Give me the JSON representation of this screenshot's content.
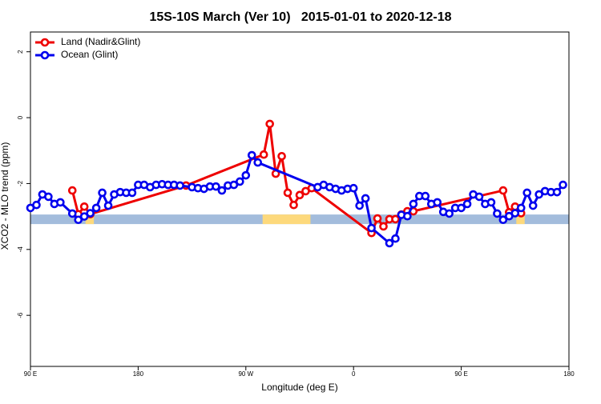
{
  "chart_data": {
    "type": "line",
    "title": "15S-10S March (Ver 10)   2015-01-01 to 2020-12-18",
    "x_label": "Longitude (deg E)",
    "y_label": "XCO2 - MLO trend (ppm)",
    "xlim": [
      90,
      540
    ],
    "xticks": [
      {
        "value": 90,
        "label": "90 E"
      },
      180,
      {
        "value": 270,
        "label": "90 W"
      },
      {
        "value": 360,
        "label": "0"
      },
      {
        "value": 450,
        "label": "90 E"
      },
      {
        "value": 540,
        "label": "180"
      }
    ],
    "ylim": [
      -7.55,
      2.6
    ],
    "yticks": [
      2,
      0,
      -2,
      -4,
      -6
    ],
    "legend": "top-left",
    "band": {
      "ylim": [
        -3.23,
        -2.94
      ],
      "color": "#a3bcdc",
      "highlight_color": "#fdd97c",
      "highlight_x": [
        [
          136,
          143
        ],
        [
          284,
          324
        ],
        [
          496,
          503
        ]
      ]
    },
    "series": [
      {
        "name": "Land (Nadir&Glint)",
        "color": "#ee0000",
        "x": [
          125,
          130,
          135,
          140,
          220,
          285,
          290,
          295,
          300,
          305,
          310,
          315,
          320,
          325,
          375,
          380,
          385,
          390,
          395,
          400,
          405,
          410,
          485,
          490,
          495,
          500
        ],
        "values": [
          -2.21,
          -2.93,
          -2.7,
          -2.93,
          -2.06,
          -1.12,
          -0.19,
          -1.7,
          -1.17,
          -2.28,
          -2.65,
          -2.35,
          -2.23,
          -2.14,
          -3.5,
          -3.06,
          -3.3,
          -3.08,
          -3.08,
          -2.94,
          -2.84,
          -2.84,
          -2.21,
          -2.87,
          -2.7,
          -2.9
        ]
      },
      {
        "name": "Ocean (Glint)",
        "color": "#0000ee",
        "x": [
          90,
          95,
          100,
          105,
          110,
          115,
          125,
          130,
          135,
          140,
          145,
          150,
          155,
          160,
          165,
          170,
          175,
          180,
          185,
          190,
          195,
          200,
          205,
          210,
          215,
          225,
          230,
          235,
          240,
          245,
          250,
          255,
          260,
          265,
          270,
          275,
          280,
          330,
          335,
          340,
          345,
          350,
          355,
          360,
          365,
          370,
          375,
          390,
          395,
          400,
          405,
          410,
          415,
          420,
          425,
          430,
          435,
          440,
          445,
          450,
          455,
          460,
          465,
          470,
          475,
          480,
          485,
          490,
          495,
          500,
          505,
          510,
          515,
          520,
          525,
          530,
          535
        ],
        "values": [
          -2.74,
          -2.65,
          -2.33,
          -2.4,
          -2.62,
          -2.57,
          -2.91,
          -3.1,
          -3.0,
          -2.9,
          -2.74,
          -2.28,
          -2.67,
          -2.33,
          -2.26,
          -2.28,
          -2.28,
          -2.04,
          -2.04,
          -2.11,
          -2.04,
          -2.02,
          -2.04,
          -2.04,
          -2.06,
          -2.11,
          -2.14,
          -2.16,
          -2.09,
          -2.09,
          -2.21,
          -2.06,
          -2.04,
          -1.94,
          -1.75,
          -1.14,
          -1.36,
          -2.11,
          -2.04,
          -2.11,
          -2.16,
          -2.21,
          -2.16,
          -2.14,
          -2.67,
          -2.45,
          -3.35,
          -3.81,
          -3.67,
          -2.95,
          -2.99,
          -2.62,
          -2.38,
          -2.38,
          -2.62,
          -2.57,
          -2.86,
          -2.91,
          -2.74,
          -2.74,
          -2.62,
          -2.33,
          -2.4,
          -2.62,
          -2.57,
          -2.91,
          -3.1,
          -2.99,
          -2.9,
          -2.74,
          -2.28,
          -2.67,
          -2.33,
          -2.23,
          -2.26,
          -2.26,
          -2.04
        ]
      }
    ]
  }
}
